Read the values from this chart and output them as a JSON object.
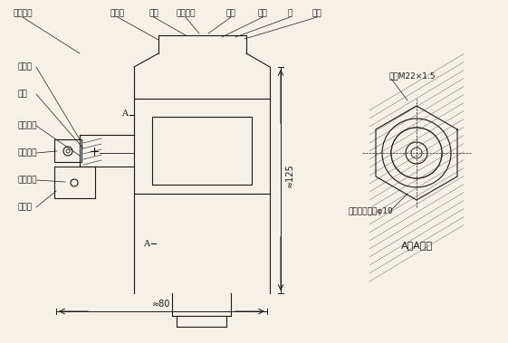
{
  "bg_color": "#f5f0e8",
  "line_color": "#1a1a1a",
  "title": "",
  "labels_top": [
    "锁紧螺钉",
    "密封圈",
    "链条",
    "链条托环",
    "螺钉",
    "螺钉",
    "盖",
    "铭牌"
  ],
  "labels_left": [
    "密封塞",
    "垫圈",
    "紧定螺钉",
    "穿线螺栓",
    "接地螺钉",
    "接线盒"
  ],
  "label_right1": "螺纹M22×1.5",
  "label_right2": "密封塞穿线孔φ10",
  "label_aa": "A－A剖视",
  "dim_width": "≈80",
  "dim_height": "≈125",
  "label_A_top": "A",
  "label_A_bot": "A"
}
